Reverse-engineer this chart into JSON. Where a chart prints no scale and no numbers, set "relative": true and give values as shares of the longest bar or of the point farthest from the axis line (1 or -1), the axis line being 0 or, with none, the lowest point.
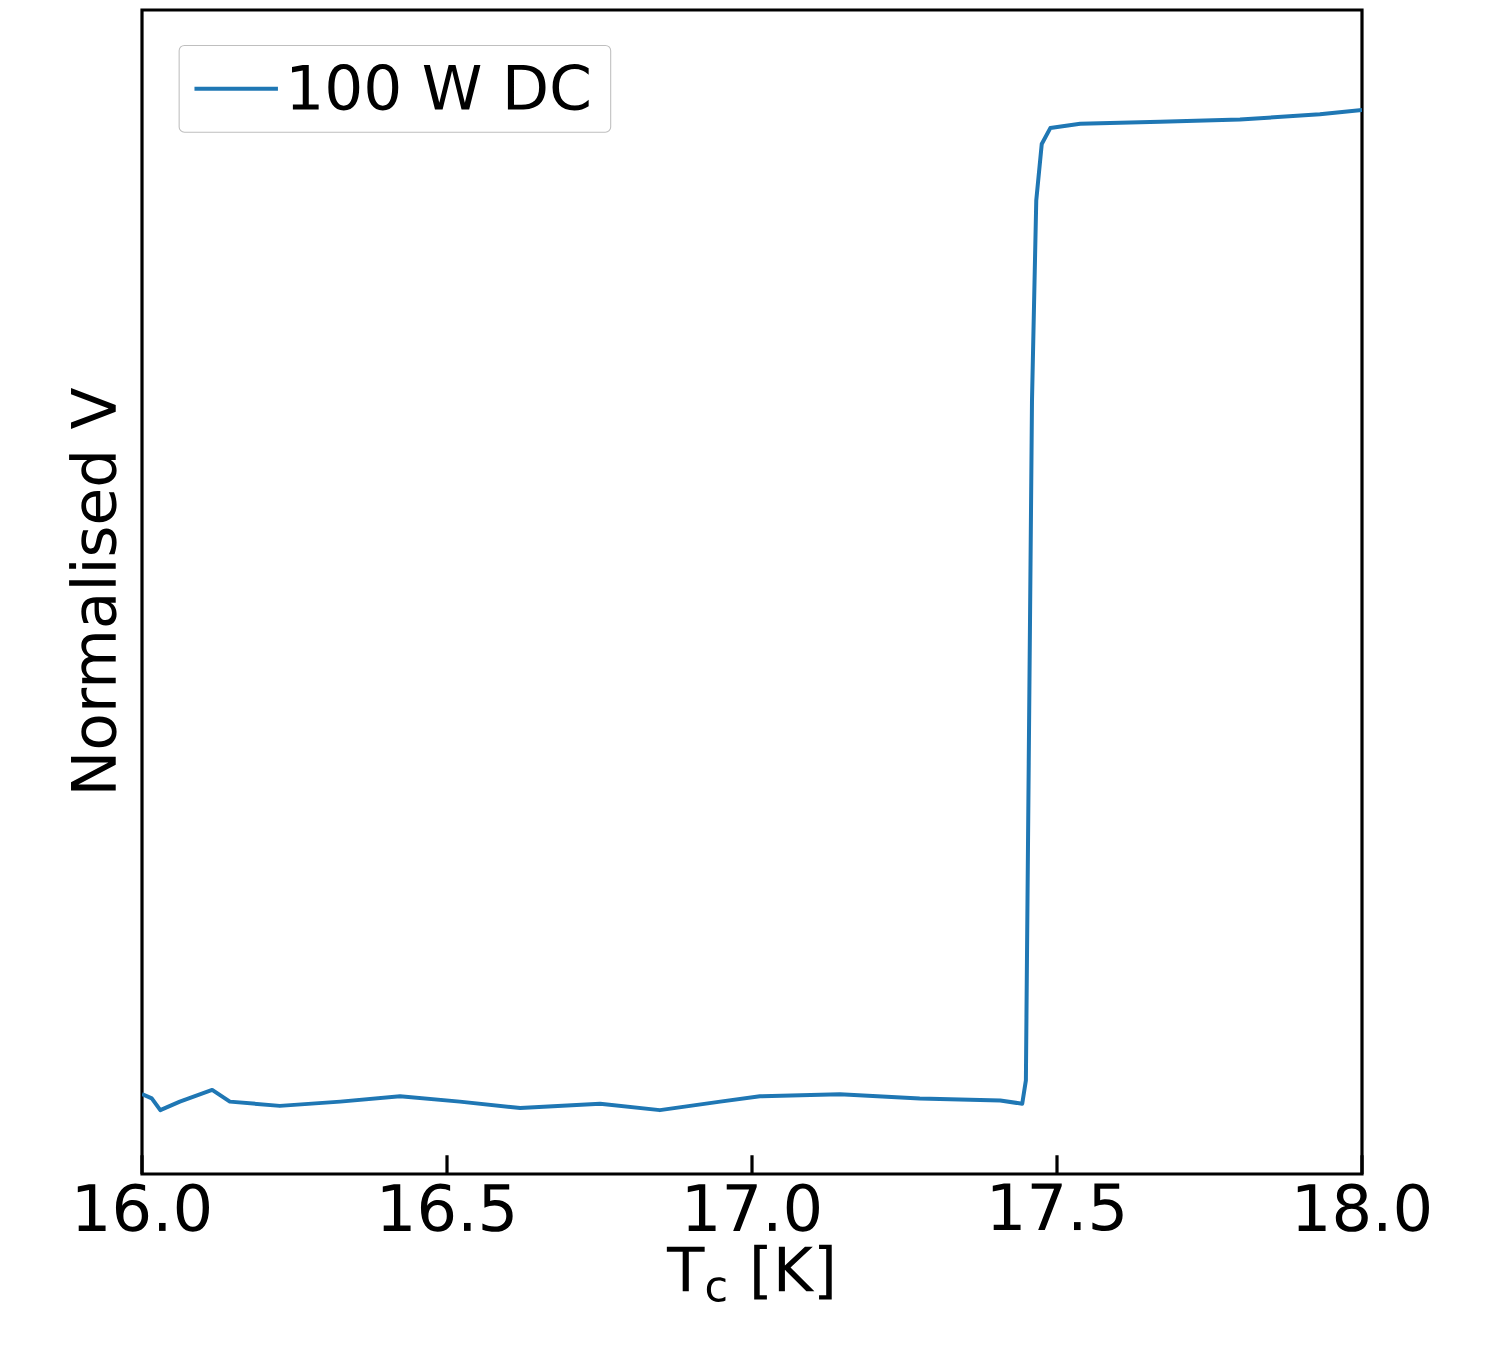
{
  "chart_data": {
    "type": "line",
    "relative": true,
    "xlabel": "T$_{c}$ [K]",
    "ylabel": "Normalised V",
    "xlim": [
      16.0,
      18.0
    ],
    "xticks": [
      {
        "value": 16.0,
        "label": "16.0"
      },
      {
        "value": 16.5,
        "label": "16.5"
      },
      {
        "value": 17.0,
        "label": "17.0"
      },
      {
        "value": 17.5,
        "label": "17.5"
      },
      {
        "value": 18.0,
        "label": "18.0"
      }
    ],
    "legend": "top left",
    "marker": "none",
    "line_style": "solid",
    "series": [
      {
        "name": "100 W DC",
        "color": "#1f77b4",
        "x": [
          16.0,
          16.016,
          16.03,
          16.062,
          16.115,
          16.144,
          16.226,
          16.325,
          16.423,
          16.521,
          16.62,
          16.751,
          16.849,
          16.948,
          17.013,
          17.144,
          17.275,
          17.407,
          17.443,
          17.449,
          17.459,
          17.466,
          17.475,
          17.489,
          17.538,
          17.669,
          17.8,
          17.931,
          18.0
        ],
        "values": [
          0.075,
          0.071,
          0.06,
          0.068,
          0.079,
          0.068,
          0.064,
          0.068,
          0.073,
          0.068,
          0.062,
          0.066,
          0.06,
          0.068,
          0.073,
          0.075,
          0.071,
          0.069,
          0.066,
          0.088,
          0.727,
          0.915,
          0.968,
          0.983,
          0.987,
          0.989,
          0.991,
          0.996,
          1.0
        ]
      }
    ]
  }
}
